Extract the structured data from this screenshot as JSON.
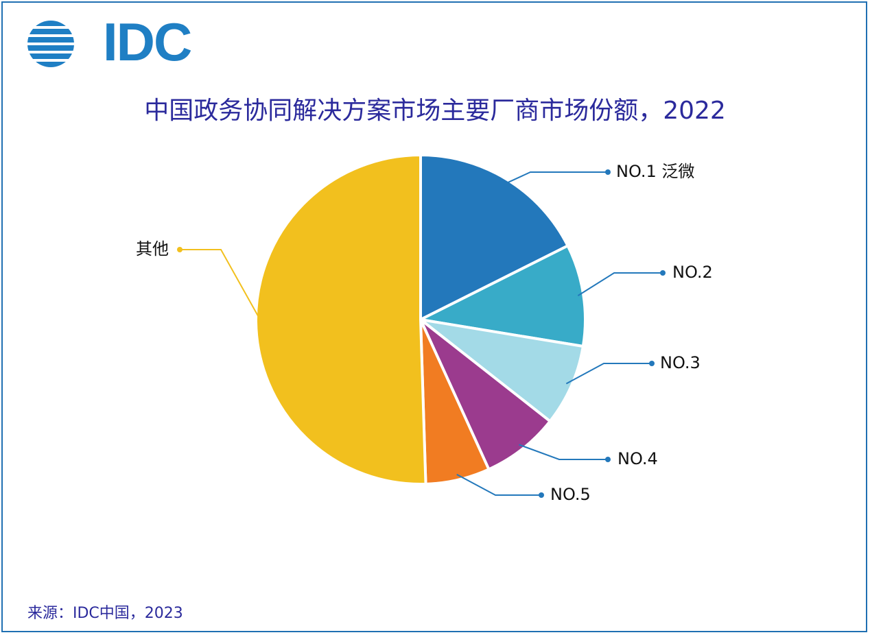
{
  "logo": {
    "text": "IDC",
    "color": "#1f7fc4"
  },
  "title": "中国政务协同解决方案市场主要厂商市场份额，2022",
  "source": "来源：IDC中国，2023",
  "chart_data": {
    "type": "pie",
    "title": "中国政务协同解决方案市场主要厂商市场份额，2022",
    "slices": [
      {
        "label": "NO.1 泛微",
        "value": 17.6,
        "color": "#2378bb"
      },
      {
        "label": "NO.2",
        "value": 10.0,
        "color": "#38abc8"
      },
      {
        "label": "NO.3",
        "value": 8.0,
        "color": "#a3dae7"
      },
      {
        "label": "NO.4",
        "value": 7.6,
        "color": "#9b3b8e"
      },
      {
        "label": "NO.5",
        "value": 6.3,
        "color": "#f17c22"
      },
      {
        "label": "其他",
        "value": 50.5,
        "color": "#f2c01e"
      }
    ],
    "start_angle_deg": 0,
    "direction": "clockwise",
    "legend": "none"
  }
}
